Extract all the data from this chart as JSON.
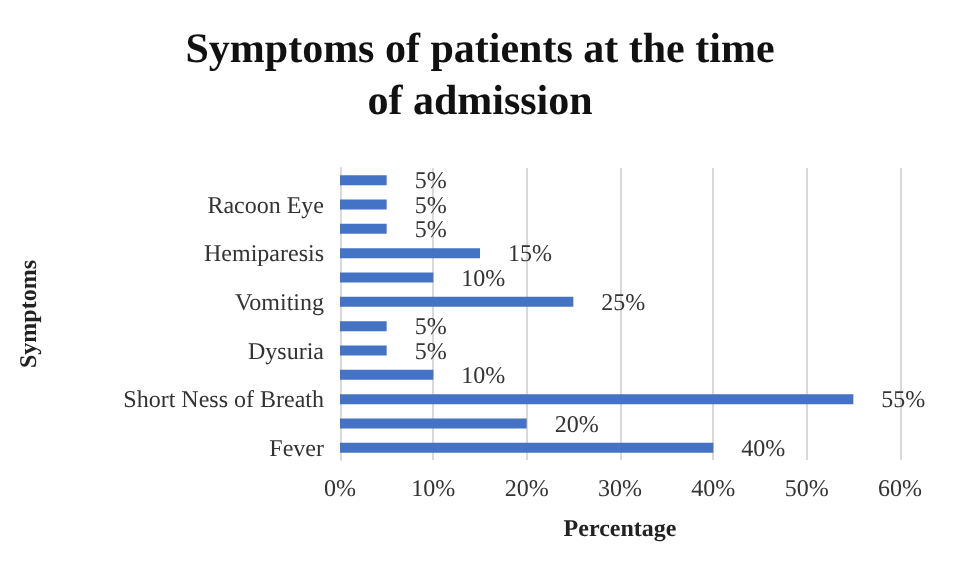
{
  "chart_data": {
    "type": "bar",
    "orientation": "horizontal",
    "title": "Symptoms of patients at the time\nof admission",
    "xlabel": "Percentage",
    "ylabel": "Symptoms",
    "categories": [
      null,
      "Racoon Eye",
      null,
      "Hemiparesis",
      null,
      "Vomiting",
      null,
      "Dysuria",
      null,
      "Short Ness of Breath",
      null,
      "Fever"
    ],
    "values": [
      5,
      5,
      5,
      15,
      10,
      25,
      5,
      5,
      10,
      55,
      20,
      40
    ],
    "value_labels": [
      "5%",
      "5%",
      "5%",
      "15%",
      "10%",
      "25%",
      "5%",
      "5%",
      "10%",
      "55%",
      "20%",
      "40%"
    ],
    "color": "#4472c4",
    "xlim": [
      0,
      60
    ],
    "xticks": [
      {
        "value": 0,
        "label": "0%"
      },
      {
        "value": 10,
        "label": "10%"
      },
      {
        "value": 20,
        "label": "20%"
      },
      {
        "value": 30,
        "label": "30%"
      },
      {
        "value": 40,
        "label": "40%"
      },
      {
        "value": 50,
        "label": "50%"
      },
      {
        "value": 60,
        "label": "60%"
      }
    ],
    "grid": "x"
  }
}
